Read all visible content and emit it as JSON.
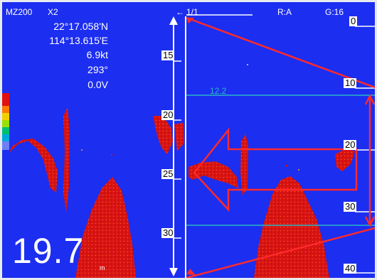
{
  "header": {
    "model": "MZ200",
    "zoom_mode": "X2",
    "page": "1/1",
    "range_mode": "R:A",
    "gain": "G:16"
  },
  "nav": {
    "latitude": "22°17.058'N",
    "longitude": "114°13.615'E",
    "speed": "6.9kt",
    "heading": "293°",
    "voltage": "0.0V"
  },
  "depth": {
    "value": "19.7",
    "unit": "m"
  },
  "zoom_scale": {
    "labels": [
      "15",
      "20",
      "25",
      "30"
    ]
  },
  "main_scale": {
    "labels": [
      "0",
      "10",
      "20",
      "30",
      "40"
    ]
  },
  "zoom_window": {
    "top_label": "12.2"
  },
  "colors": {
    "water": "#1c2ef0",
    "echo_strong": "#d81414",
    "echo_weak": "#f0a020",
    "annotation": "#ff2a2a",
    "zoom_line": "#2ab6c2"
  },
  "icons": [
    "left-arrow-icon",
    "up-arrow-icon",
    "down-arrow-icon"
  ]
}
